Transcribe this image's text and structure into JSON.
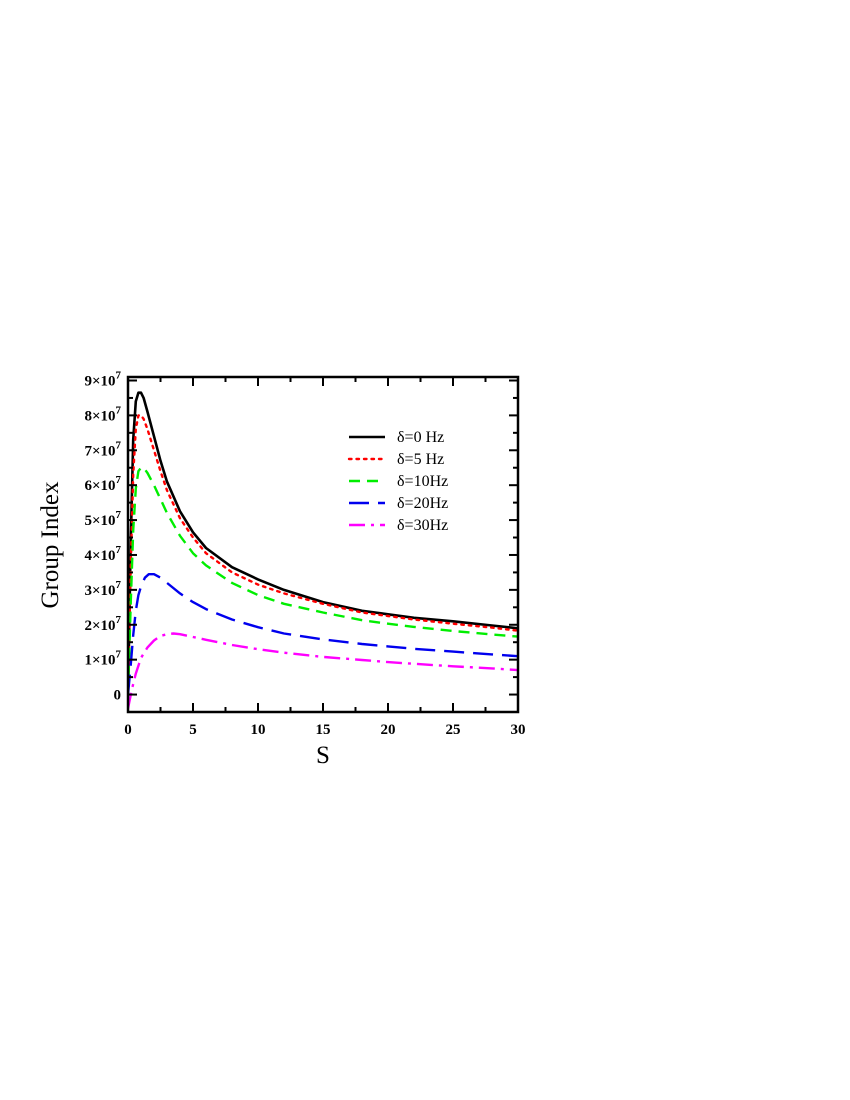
{
  "chart_data": {
    "type": "line",
    "xlabel": "S",
    "ylabel": "Group Index",
    "xlim": [
      0,
      30
    ],
    "ylim": [
      -5000000,
      91000000
    ],
    "x_ticks": [
      {
        "value": 0,
        "label": "0"
      },
      {
        "value": 5,
        "label": "5"
      },
      {
        "value": 10,
        "label": "10"
      },
      {
        "value": 15,
        "label": "15"
      },
      {
        "value": 20,
        "label": "20"
      },
      {
        "value": 25,
        "label": "25"
      },
      {
        "value": 30,
        "label": "30"
      }
    ],
    "y_ticks": [
      {
        "value": 0,
        "base": "0",
        "exp": ""
      },
      {
        "value": 10000000,
        "base": "1×10",
        "exp": "7"
      },
      {
        "value": 20000000,
        "base": "2×10",
        "exp": "7"
      },
      {
        "value": 30000000,
        "base": "3×10",
        "exp": "7"
      },
      {
        "value": 40000000,
        "base": "4×10",
        "exp": "7"
      },
      {
        "value": 50000000,
        "base": "5×10",
        "exp": "7"
      },
      {
        "value": 60000000,
        "base": "6×10",
        "exp": "7"
      },
      {
        "value": 70000000,
        "base": "7×10",
        "exp": "7"
      },
      {
        "value": 80000000,
        "base": "8×10",
        "exp": "7"
      },
      {
        "value": 90000000,
        "base": "9×10",
        "exp": "7"
      }
    ],
    "grid": false,
    "legend_position": "top-right",
    "series": [
      {
        "name": "δ=0 Hz",
        "color": "#000000",
        "dash": "solid",
        "x": [
          0,
          0.1,
          0.2,
          0.4,
          0.6,
          0.8,
          1.0,
          1.2,
          1.5,
          2,
          2.5,
          3,
          4,
          5,
          6,
          8,
          10,
          12,
          15,
          18,
          20,
          22,
          25,
          28,
          30
        ],
        "y": [
          0,
          20000000,
          42000000,
          73000000,
          84000000,
          86500000,
          86500000,
          85000000,
          81000000,
          74000000,
          67000000,
          61000000,
          52500000,
          46500000,
          42000000,
          36500000,
          33000000,
          30000000,
          26500000,
          24000000,
          23000000,
          22000000,
          21000000,
          19800000,
          19000000
        ]
      },
      {
        "name": "δ=5 Hz",
        "color": "#ff0000",
        "dash": "dotted",
        "x": [
          0,
          0.1,
          0.2,
          0.4,
          0.6,
          0.8,
          1.0,
          1.2,
          1.5,
          2,
          2.5,
          3,
          4,
          5,
          6,
          8,
          10,
          12,
          15,
          18,
          20,
          22,
          25,
          28,
          30
        ],
        "y": [
          0,
          17000000,
          35000000,
          63000000,
          76000000,
          80000000,
          80000000,
          79000000,
          76000000,
          70000000,
          64000000,
          58500000,
          50500000,
          45000000,
          40500000,
          35000000,
          31500000,
          29000000,
          26000000,
          23500000,
          22500000,
          21500000,
          20300000,
          19200000,
          18300000
        ]
      },
      {
        "name": "δ=10Hz",
        "color": "#00ee00",
        "dash": "dashed",
        "x": [
          0,
          0.1,
          0.2,
          0.4,
          0.6,
          0.8,
          1.0,
          1.2,
          1.5,
          2,
          2.5,
          3,
          4,
          5,
          6,
          8,
          10,
          12,
          15,
          18,
          20,
          22,
          25,
          28,
          30
        ],
        "y": [
          0,
          12000000,
          25000000,
          47000000,
          59000000,
          64000000,
          65000000,
          65000000,
          63500000,
          60000000,
          56000000,
          52000000,
          45500000,
          40500000,
          37000000,
          32000000,
          28500000,
          26000000,
          23500000,
          21300000,
          20300000,
          19400000,
          18200000,
          17200000,
          16600000
        ]
      },
      {
        "name": "δ=20Hz",
        "color": "#0000ee",
        "dash": "longdash",
        "x": [
          0,
          0.2,
          0.4,
          0.6,
          0.8,
          1.0,
          1.3,
          1.6,
          2.0,
          2.5,
          3,
          4,
          5,
          6,
          8,
          10,
          12,
          15,
          18,
          20,
          22,
          25,
          28,
          30
        ],
        "y": [
          0,
          8000000,
          17000000,
          24000000,
          28500000,
          31000000,
          33500000,
          34500000,
          34500000,
          33500000,
          32000000,
          29000000,
          26500000,
          24500000,
          21500000,
          19300000,
          17500000,
          15800000,
          14500000,
          13800000,
          13100000,
          12300000,
          11500000,
          11000000
        ]
      },
      {
        "name": "δ=30Hz",
        "color": "#ff00ff",
        "dash": "dashdot",
        "x": [
          0,
          0.3,
          0.6,
          1.0,
          1.5,
          2.0,
          2.5,
          3.0,
          3.5,
          4.0,
          5,
          6,
          8,
          10,
          12,
          15,
          18,
          20,
          22,
          25,
          28,
          30
        ],
        "y": [
          -4000000,
          1500000,
          6000000,
          10500000,
          13500000,
          15500000,
          16800000,
          17300000,
          17500000,
          17300000,
          16500000,
          15700000,
          14200000,
          13000000,
          12000000,
          10800000,
          9900000,
          9300000,
          8800000,
          8100000,
          7500000,
          7000000
        ]
      }
    ]
  }
}
